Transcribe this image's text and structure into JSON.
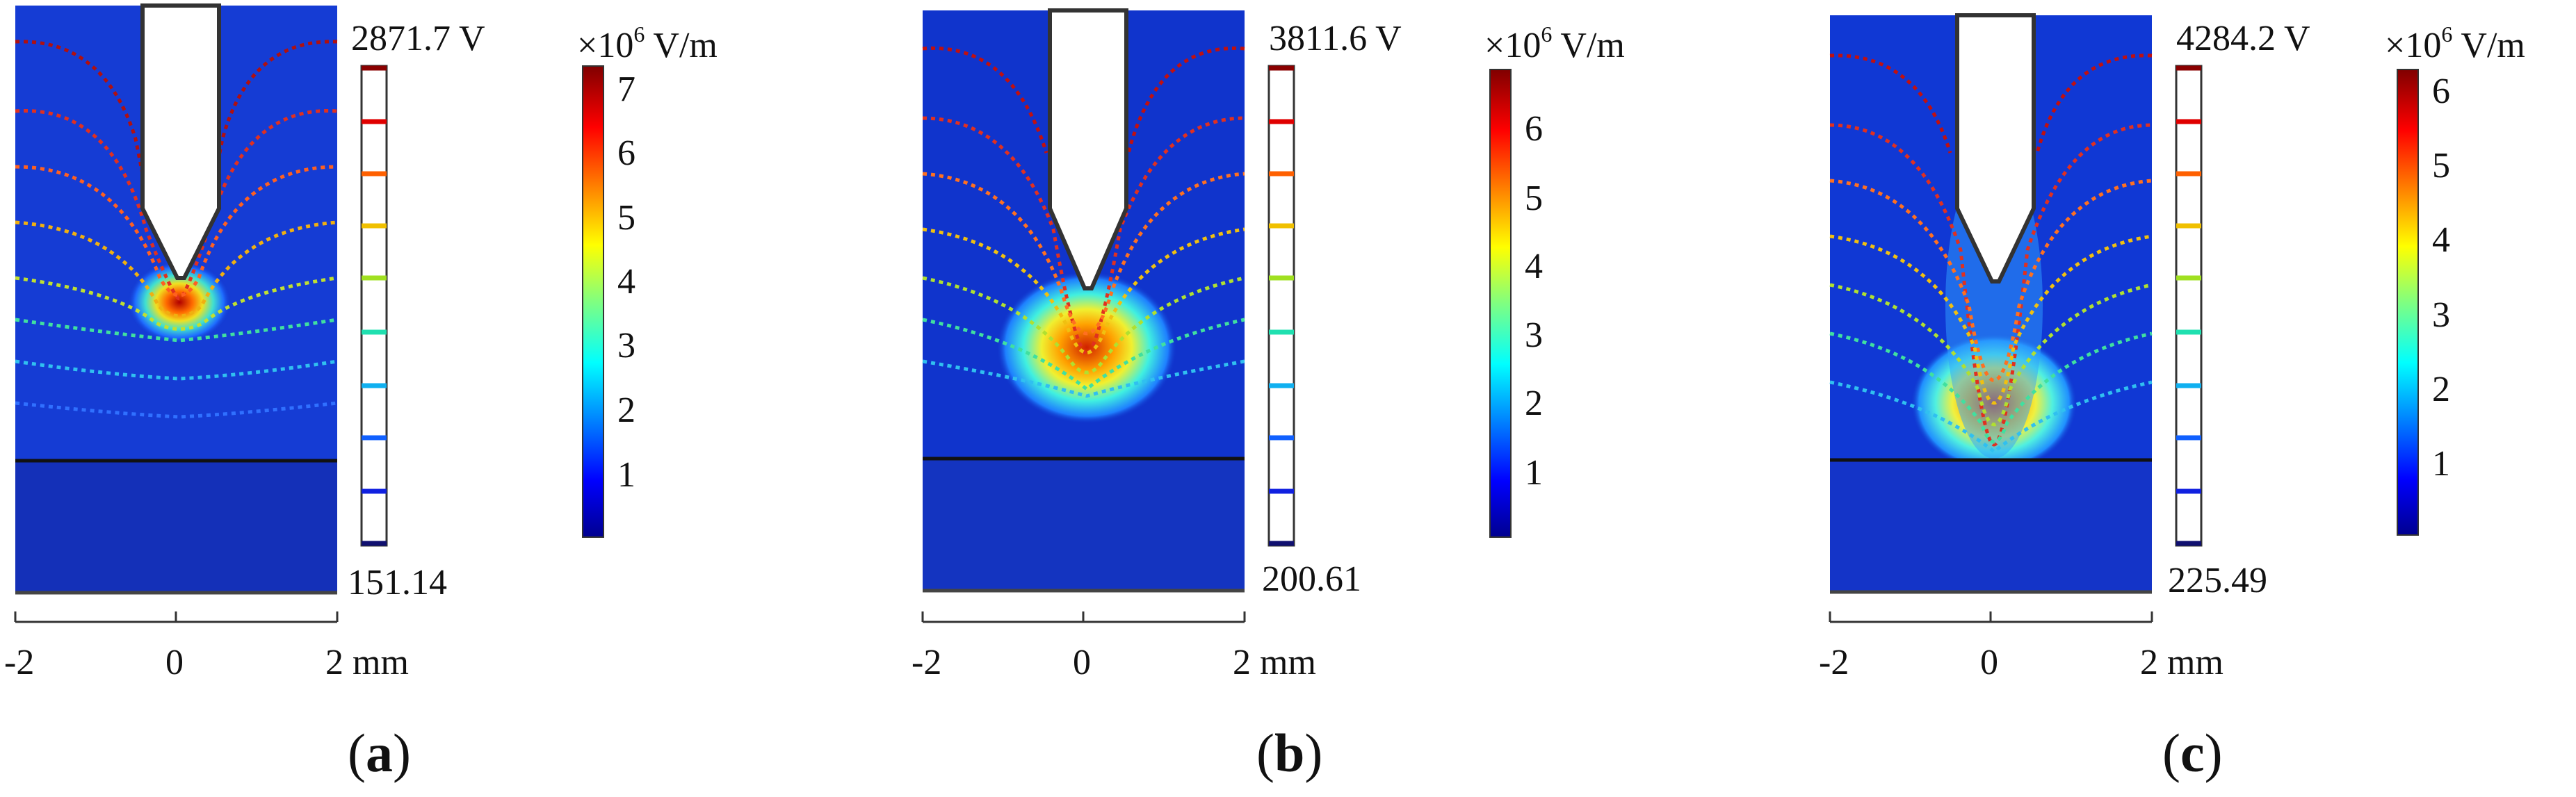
{
  "panels": [
    {
      "id": "a",
      "caption": "a",
      "voltage_max": "2871.7 V",
      "voltage_min": "151.14",
      "colorbar_unit_prefix": "×10",
      "colorbar_unit_exp": "6",
      "colorbar_unit_suffix": " V/m",
      "colorbar_ticks": [
        "1",
        "2",
        "3",
        "4",
        "5",
        "6",
        "7"
      ],
      "colorbar_max_value": 7.35,
      "scale_ticks": [
        "-2",
        "0",
        "2 mm"
      ]
    },
    {
      "id": "b",
      "caption": "b",
      "voltage_max": "3811.6 V",
      "voltage_min": "200.61",
      "colorbar_unit_prefix": "×10",
      "colorbar_unit_exp": "6",
      "colorbar_unit_suffix": " V/m",
      "colorbar_ticks": [
        "1",
        "2",
        "3",
        "4",
        "5",
        "6"
      ],
      "colorbar_max_value": 6.9,
      "scale_ticks": [
        "-2",
        "0",
        "2 mm"
      ]
    },
    {
      "id": "c",
      "caption": "c",
      "voltage_max": "4284.2 V",
      "voltage_min": "225.49",
      "colorbar_unit_prefix": "×10",
      "colorbar_unit_exp": "6",
      "colorbar_unit_suffix": " V/m",
      "colorbar_ticks": [
        "1",
        "2",
        "3",
        "4",
        "5",
        "6"
      ],
      "colorbar_max_value": 6.3,
      "scale_ticks": [
        "-2",
        "0",
        "2 mm"
      ]
    }
  ],
  "colors": {
    "field_background": "#1030c8",
    "substrate": "#1430b8",
    "outline": "#222222"
  }
}
